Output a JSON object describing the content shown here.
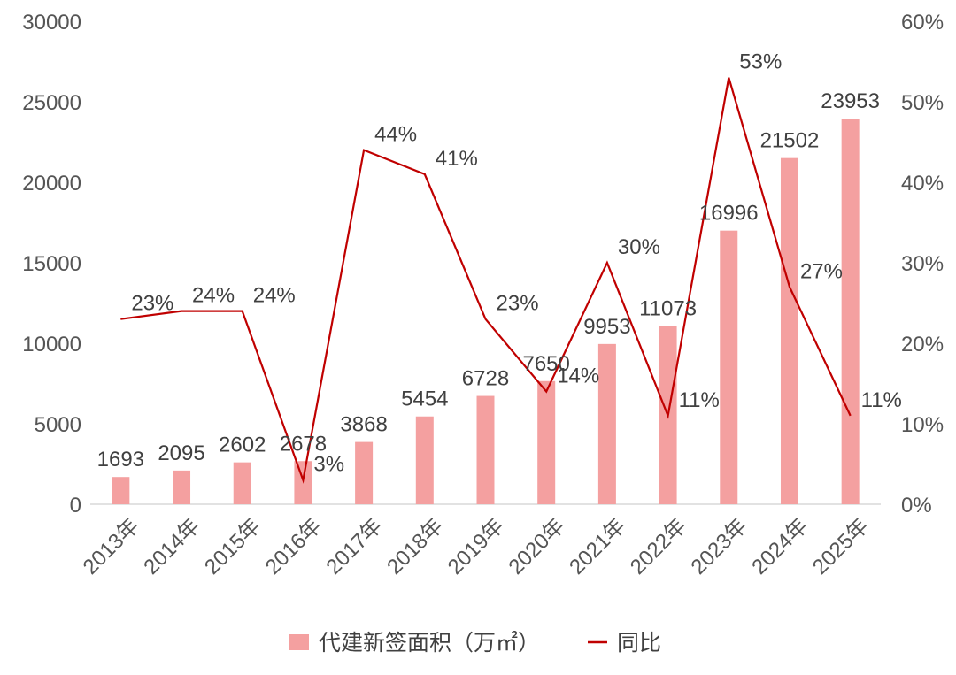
{
  "chart_data": {
    "type": "bar+line",
    "title": "",
    "categories": [
      "2013年",
      "2014年",
      "2015年",
      "2016年",
      "2017年",
      "2018年",
      "2019年",
      "2020年",
      "2021年",
      "2022年",
      "2023年",
      "2024年",
      "2025年"
    ],
    "series": [
      {
        "name": "代建新签面积（万㎡）",
        "type": "bar",
        "axis": "left",
        "color": "#F4A0A0",
        "values": [
          1693,
          2095,
          2602,
          2678,
          3868,
          5454,
          6728,
          7650,
          9953,
          11073,
          16996,
          21502,
          23953
        ],
        "labels": [
          "1693",
          "2095",
          "2602",
          "2678",
          "3868",
          "5454",
          "6728",
          "7650",
          "9953",
          "11073",
          "16996",
          "21502",
          "23953"
        ]
      },
      {
        "name": "同比",
        "type": "line",
        "axis": "right",
        "color": "#C00000",
        "values": [
          23,
          24,
          24,
          3,
          44,
          41,
          23,
          14,
          30,
          11,
          53,
          27,
          11
        ],
        "labels": [
          "23%",
          "24%",
          "24%",
          "3%",
          "44%",
          "41%",
          "23%",
          "14%",
          "30%",
          "11%",
          "53%",
          "27%",
          "11%"
        ]
      }
    ],
    "y_left": {
      "min": 0,
      "max": 30000,
      "ticks": [
        "0",
        "5000",
        "10000",
        "15000",
        "20000",
        "25000",
        "30000"
      ]
    },
    "y_right": {
      "min": 0,
      "max": 60,
      "ticks": [
        "0%",
        "10%",
        "20%",
        "30%",
        "40%",
        "50%",
        "60%"
      ]
    },
    "legend": {
      "position": "bottom",
      "items": [
        "代建新签面积（万㎡）",
        "同比"
      ]
    },
    "grid": false
  }
}
